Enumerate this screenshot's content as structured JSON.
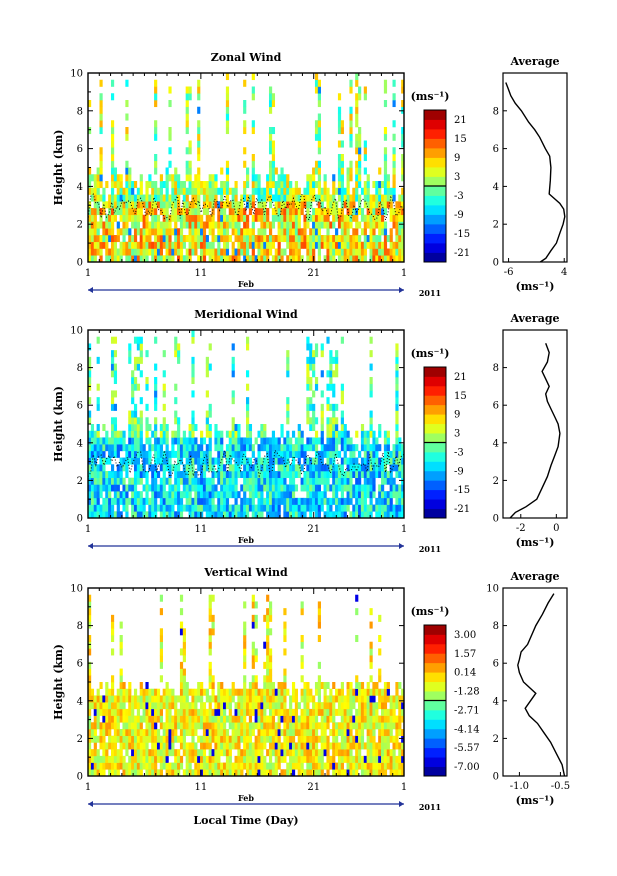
{
  "xaxis": {
    "ticks": [
      "1",
      "11",
      "21",
      "1"
    ],
    "month": "Feb",
    "year": "2011",
    "label": "Local Time (Day)"
  },
  "unit": "(ms⁻¹)",
  "average_title": "Average",
  "chart_data": [
    {
      "type": "heatmap",
      "title": "Zonal Wind",
      "ylabel": "Height (km)",
      "yticks": [
        "0",
        "2",
        "4",
        "6",
        "8",
        "10"
      ],
      "ylim": [
        0,
        10
      ],
      "colorbar": {
        "ticks": [
          "21",
          "15",
          "9",
          "3",
          "-3",
          "-9",
          "-15",
          "-21"
        ],
        "range": [
          -24,
          24
        ]
      }
    },
    {
      "type": "line",
      "title": "Average",
      "xticks": [
        "-6",
        "4"
      ],
      "xlabel": "(ms⁻¹)",
      "yticks": [
        "0",
        "2",
        "4",
        "6",
        "8"
      ],
      "xlim": [
        -7,
        4.5
      ],
      "ylim": [
        0,
        10
      ],
      "x": [
        -0.3,
        0.7,
        1.6,
        2.6,
        3.3,
        3.8,
        4.1,
        3.9,
        3.2,
        1.3,
        1.5,
        1.6,
        1.4,
        0.6,
        -0.4,
        -1.3,
        -2.4,
        -3.7,
        -4.8,
        -5.6,
        -6.1,
        -6.5
      ],
      "y": [
        0.0,
        0.2,
        0.6,
        1.0,
        1.6,
        2.0,
        2.4,
        2.8,
        3.1,
        3.6,
        4.3,
        5.0,
        5.6,
        6.0,
        6.6,
        7.0,
        7.4,
        8.0,
        8.4,
        8.8,
        9.2,
        9.5
      ]
    },
    {
      "type": "heatmap",
      "title": "Meridional Wind",
      "ylabel": "Height (km)",
      "yticks": [
        "0",
        "2",
        "4",
        "6",
        "8",
        "10"
      ],
      "ylim": [
        0,
        10
      ],
      "colorbar": {
        "ticks": [
          "21",
          "15",
          "9",
          "3",
          "-3",
          "-9",
          "-15",
          "-21"
        ],
        "range": [
          -24,
          24
        ]
      }
    },
    {
      "type": "line",
      "title": "Average",
      "xticks": [
        "-2",
        "0"
      ],
      "xlabel": "(ms⁻¹)",
      "yticks": [
        "0",
        "2",
        "4",
        "6",
        "8"
      ],
      "xlim": [
        -3,
        0.6
      ],
      "ylim": [
        0,
        10
      ],
      "x": [
        -2.6,
        -2.3,
        -1.7,
        -1.1,
        -0.8,
        -0.5,
        -0.3,
        -0.1,
        0.1,
        0.2,
        0.1,
        -0.1,
        -0.3,
        -0.5,
        -0.6,
        -0.4,
        -0.6,
        -0.8,
        -0.5,
        -0.4,
        -0.6
      ],
      "y": [
        0.0,
        0.3,
        0.6,
        1.0,
        1.6,
        2.2,
        2.8,
        3.3,
        3.8,
        4.5,
        5.0,
        5.4,
        5.8,
        6.2,
        6.6,
        7.0,
        7.4,
        7.8,
        8.3,
        8.8,
        9.3
      ]
    },
    {
      "type": "heatmap",
      "title": "Vertical Wind",
      "ylabel": "Height (km)",
      "yticks": [
        "0",
        "2",
        "4",
        "6",
        "8",
        "10"
      ],
      "ylim": [
        0,
        10
      ],
      "colorbar": {
        "ticks": [
          "3.00",
          "1.57",
          "0.14",
          "-1.28",
          "-2.71",
          "-4.14",
          "-5.57",
          "-7.00"
        ],
        "range": [
          -7.71,
          3.71
        ]
      }
    },
    {
      "type": "line",
      "title": "Average",
      "xticks": [
        "-1.0",
        "-0.5"
      ],
      "xlabel": "(ms⁻¹)",
      "yticks": [
        "0",
        "2",
        "4",
        "6",
        "8",
        "10"
      ],
      "xlim": [
        -1.2,
        -0.42
      ],
      "ylim": [
        0,
        10
      ],
      "x": [
        -0.45,
        -0.48,
        -0.55,
        -0.62,
        -0.7,
        -0.78,
        -0.88,
        -0.93,
        -0.8,
        -0.95,
        -1.0,
        -1.02,
        -1.0,
        -0.98,
        -0.9,
        -0.85,
        -0.8,
        -0.72,
        -0.65,
        -0.58
      ],
      "y": [
        0.0,
        0.6,
        1.2,
        1.8,
        2.3,
        2.8,
        3.2,
        3.6,
        4.4,
        5.0,
        5.5,
        5.9,
        6.2,
        6.6,
        7.0,
        7.5,
        8.0,
        8.6,
        9.2,
        9.7
      ]
    }
  ]
}
